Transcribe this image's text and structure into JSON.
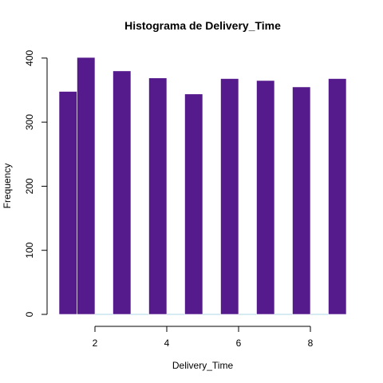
{
  "chart_data": {
    "type": "bar",
    "title": "Histograma de Delivery_Time",
    "xlabel": "Delivery_Time",
    "ylabel": "Frequency",
    "bin_width": 0.5,
    "bins": [
      {
        "x0": 1.0,
        "x1": 1.5,
        "count": 348
      },
      {
        "x0": 1.5,
        "x1": 2.0,
        "count": 401
      },
      {
        "x0": 2.0,
        "x1": 2.5,
        "count": 0
      },
      {
        "x0": 2.5,
        "x1": 3.0,
        "count": 380
      },
      {
        "x0": 3.0,
        "x1": 3.5,
        "count": 0
      },
      {
        "x0": 3.5,
        "x1": 4.0,
        "count": 369
      },
      {
        "x0": 4.0,
        "x1": 4.5,
        "count": 0
      },
      {
        "x0": 4.5,
        "x1": 5.0,
        "count": 344
      },
      {
        "x0": 5.0,
        "x1": 5.5,
        "count": 0
      },
      {
        "x0": 5.5,
        "x1": 6.0,
        "count": 368
      },
      {
        "x0": 6.0,
        "x1": 6.5,
        "count": 0
      },
      {
        "x0": 6.5,
        "x1": 7.0,
        "count": 365
      },
      {
        "x0": 7.0,
        "x1": 7.5,
        "count": 0
      },
      {
        "x0": 7.5,
        "x1": 8.0,
        "count": 355
      },
      {
        "x0": 8.0,
        "x1": 8.5,
        "count": 0
      },
      {
        "x0": 8.5,
        "x1": 9.0,
        "count": 368
      }
    ],
    "xlim": [
      1,
      9
    ],
    "ylim": [
      0,
      401
    ],
    "x_ticks": [
      2,
      4,
      6,
      8
    ],
    "y_ticks": [
      0,
      100,
      200,
      300,
      400
    ],
    "bar_color": "#551A8B",
    "empty_bin_color": "#ADD8E6",
    "grid": false,
    "legend": "none"
  }
}
